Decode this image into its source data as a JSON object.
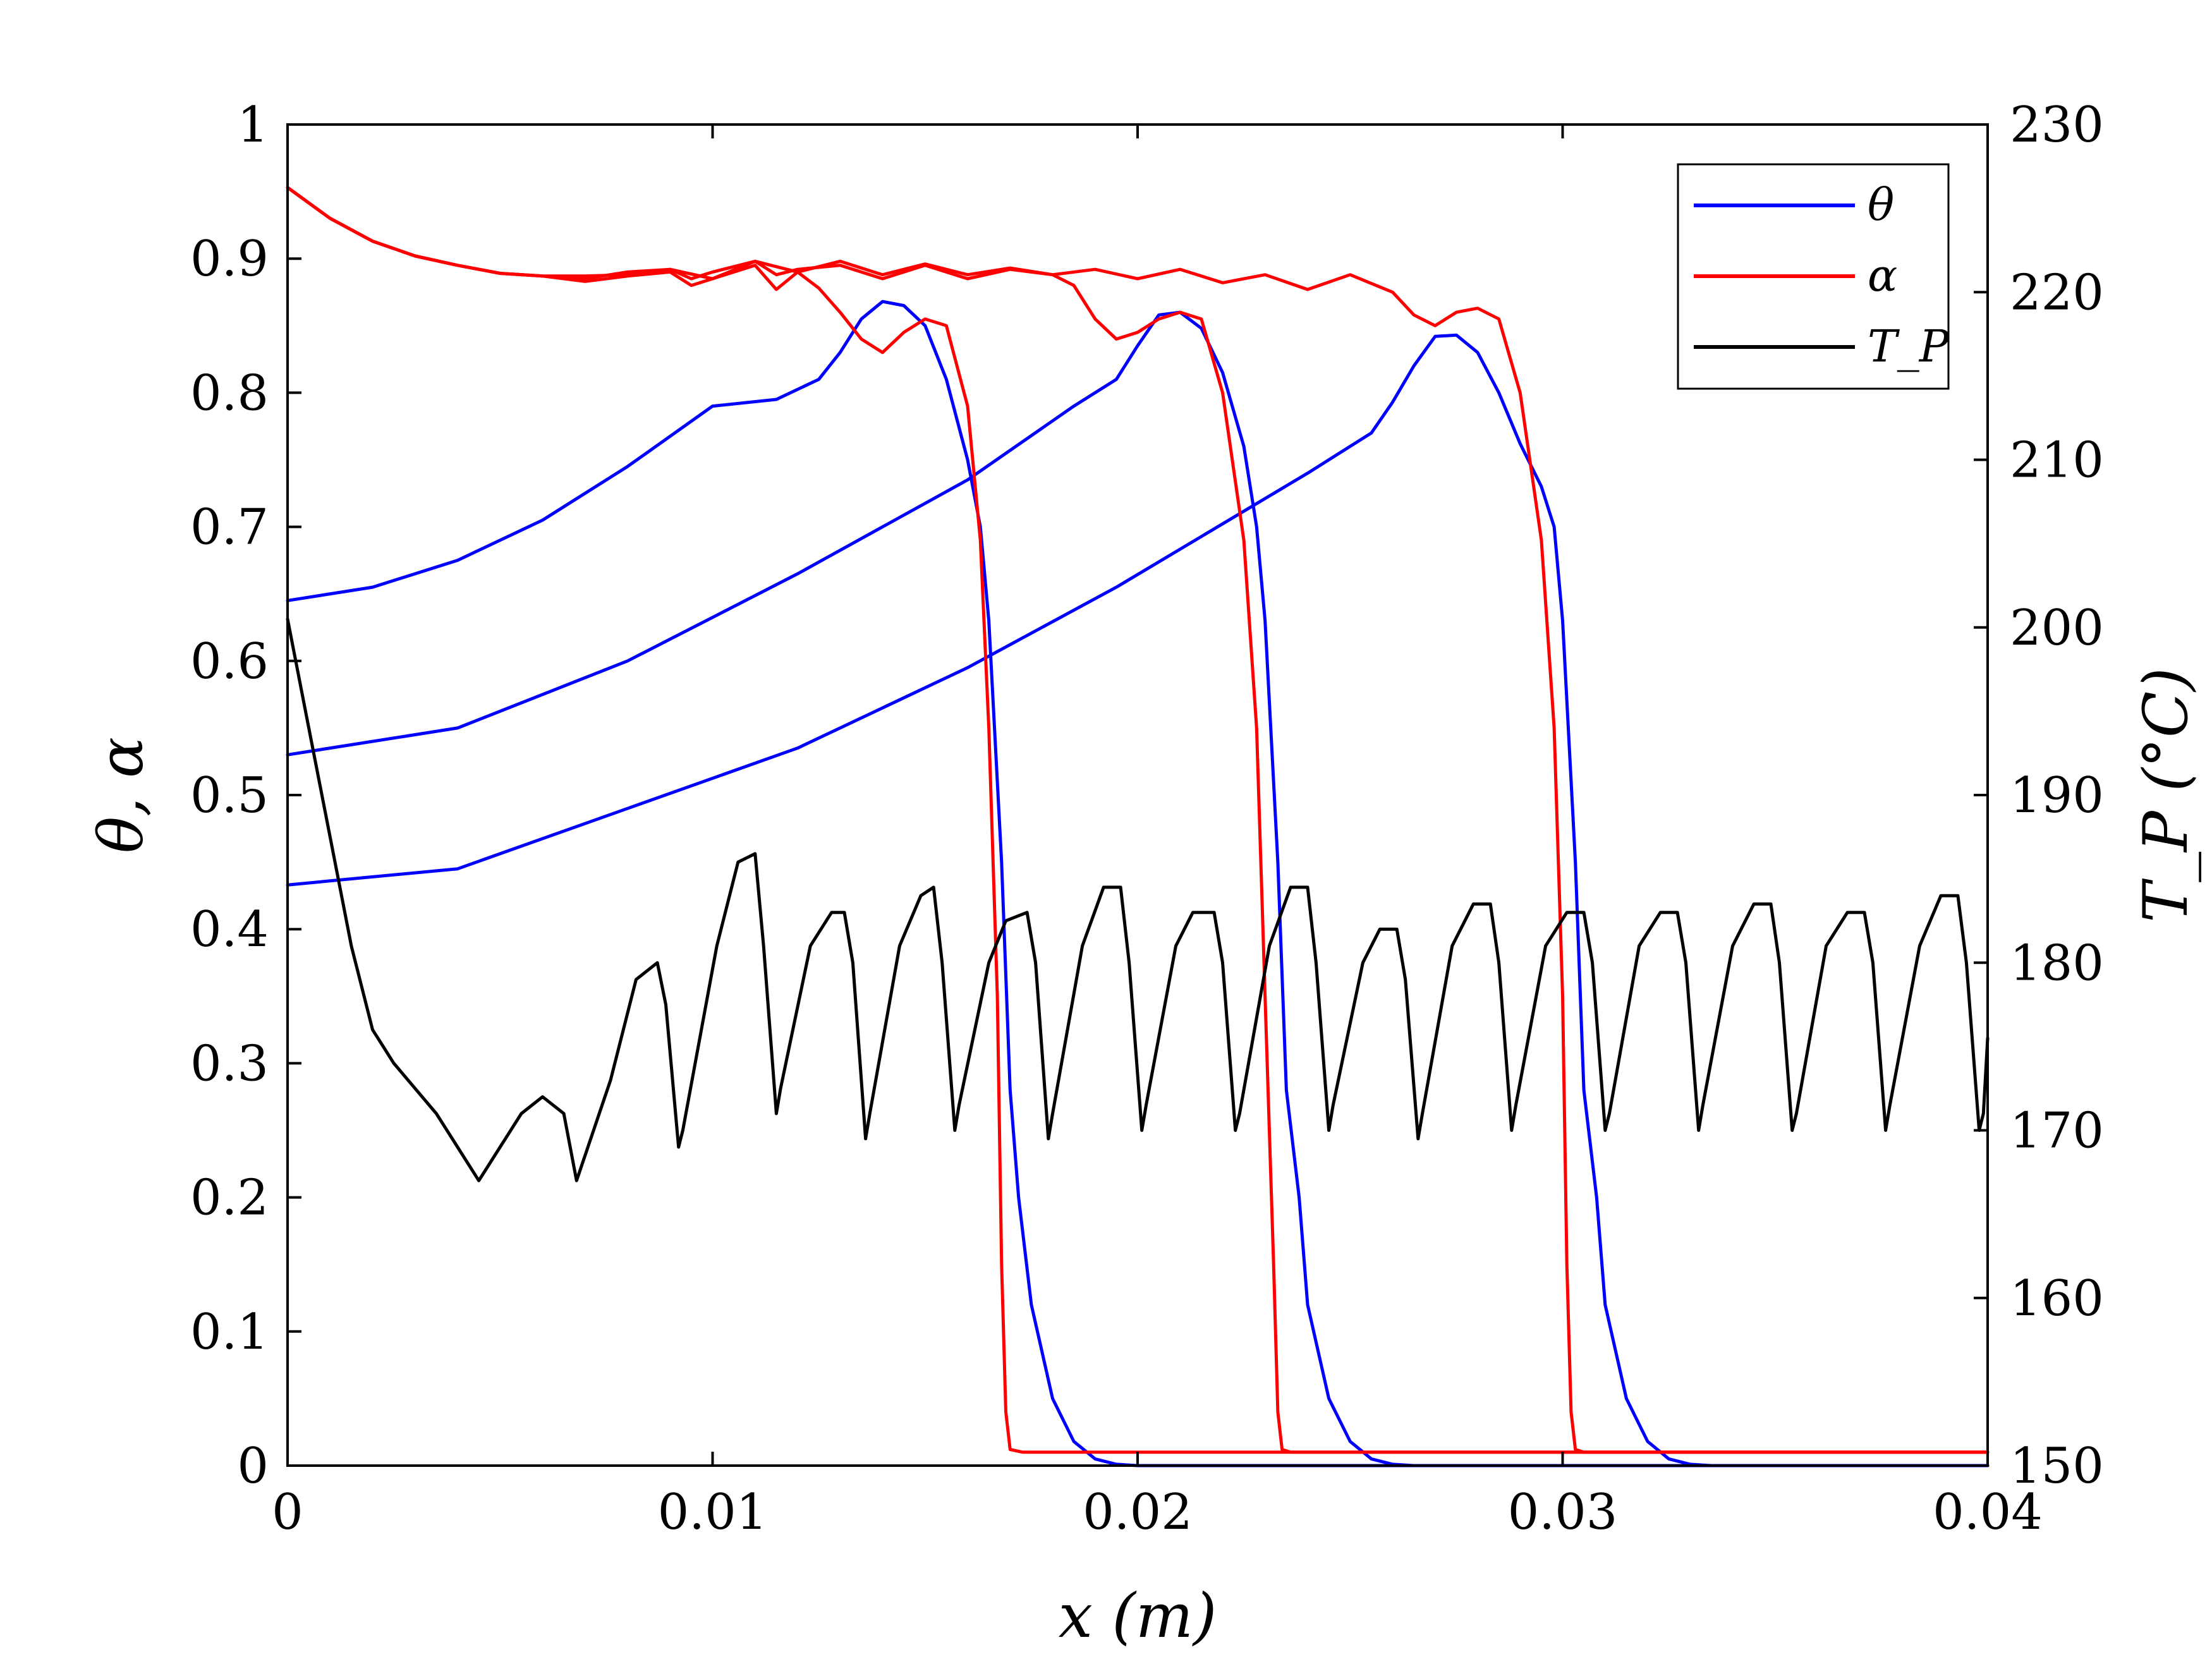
{
  "chart_data": {
    "type": "line",
    "x_axis": {
      "label": "x (m)",
      "range": [
        0,
        0.04
      ],
      "ticks": [
        0,
        0.01,
        0.02,
        0.03,
        0.04
      ],
      "tick_labels": [
        "0",
        "0.01",
        "0.02",
        "0.03",
        "0.04"
      ]
    },
    "y_axis_left": {
      "label": "θ, α",
      "range": [
        0,
        1
      ],
      "ticks": [
        0,
        0.1,
        0.2,
        0.3,
        0.4,
        0.5,
        0.6,
        0.7,
        0.8,
        0.9,
        1
      ],
      "tick_labels": [
        "0",
        "0.1",
        "0.2",
        "0.3",
        "0.4",
        "0.5",
        "0.6",
        "0.7",
        "0.8",
        "0.9",
        "1"
      ]
    },
    "y_axis_right": {
      "label": "T_P (°C)",
      "range": [
        150,
        230
      ],
      "ticks": [
        150,
        160,
        170,
        180,
        190,
        200,
        210,
        220,
        230
      ],
      "tick_labels": [
        "150",
        "160",
        "170",
        "180",
        "190",
        "200",
        "210",
        "220",
        "230"
      ]
    },
    "legend": {
      "placement": "top-right",
      "entries": [
        {
          "label": "θ",
          "color": "#0000ff"
        },
        {
          "label": "α",
          "color": "#ff0000"
        },
        {
          "label": "T_P",
          "color": "#000000"
        }
      ]
    },
    "series": [
      {
        "name": "θ",
        "axis": "left",
        "color": "#0000ff",
        "lines": [
          {
            "x": [
              0,
              0.002,
              0.004,
              0.006,
              0.008,
              0.01,
              0.0115,
              0.0125,
              0.013,
              0.0135,
              0.014,
              0.0145,
              0.015,
              0.0155,
              0.016,
              0.0163,
              0.0165,
              0.0168,
              0.017,
              0.0172,
              0.0175,
              0.018,
              0.0185,
              0.019,
              0.0195,
              0.02,
              0.021,
              0.04
            ],
            "y": [
              0.645,
              0.655,
              0.675,
              0.705,
              0.745,
              0.79,
              0.795,
              0.81,
              0.83,
              0.855,
              0.868,
              0.865,
              0.85,
              0.81,
              0.75,
              0.7,
              0.63,
              0.45,
              0.28,
              0.2,
              0.12,
              0.05,
              0.018,
              0.005,
              0.001,
              0,
              0,
              0
            ]
          },
          {
            "x": [
              0,
              0.004,
              0.008,
              0.012,
              0.016,
              0.0185,
              0.0195,
              0.02,
              0.0205,
              0.021,
              0.0215,
              0.022,
              0.0225,
              0.0228,
              0.023,
              0.0233,
              0.0235,
              0.0238,
              0.024,
              0.0245,
              0.025,
              0.0255,
              0.026,
              0.0265,
              0.027,
              0.04
            ],
            "y": [
              0.53,
              0.55,
              0.6,
              0.665,
              0.735,
              0.79,
              0.81,
              0.835,
              0.858,
              0.86,
              0.848,
              0.815,
              0.76,
              0.7,
              0.63,
              0.45,
              0.28,
              0.2,
              0.12,
              0.05,
              0.018,
              0.005,
              0.001,
              0,
              0,
              0
            ]
          },
          {
            "x": [
              0,
              0.004,
              0.008,
              0.012,
              0.016,
              0.0195,
              0.024,
              0.0255,
              0.026,
              0.0265,
              0.027,
              0.0275,
              0.028,
              0.0285,
              0.029,
              0.0295,
              0.0298,
              0.03,
              0.0303,
              0.0305,
              0.0308,
              0.031,
              0.0315,
              0.032,
              0.0325,
              0.033,
              0.0335,
              0.04
            ],
            "y": [
              0.433,
              0.445,
              0.49,
              0.535,
              0.595,
              0.655,
              0.74,
              0.77,
              0.793,
              0.82,
              0.842,
              0.843,
              0.83,
              0.8,
              0.762,
              0.73,
              0.7,
              0.63,
              0.45,
              0.28,
              0.2,
              0.12,
              0.05,
              0.018,
              0.005,
              0.001,
              0,
              0
            ]
          }
        ]
      },
      {
        "name": "α",
        "axis": "left",
        "color": "#ff0000",
        "lines": [
          {
            "x": [
              0,
              0.001,
              0.002,
              0.003,
              0.004,
              0.005,
              0.006,
              0.007,
              0.008,
              0.009,
              0.0095,
              0.01,
              0.011,
              0.0115,
              0.012,
              0.0125,
              0.013,
              0.0135,
              0.014,
              0.0145,
              0.015,
              0.0155,
              0.016,
              0.0163,
              0.0165,
              0.0167,
              0.0168,
              0.0169,
              0.017,
              0.0173,
              0.04
            ],
            "y": [
              0.953,
              0.93,
              0.913,
              0.902,
              0.895,
              0.889,
              0.887,
              0.883,
              0.887,
              0.89,
              0.88,
              0.885,
              0.895,
              0.877,
              0.89,
              0.878,
              0.86,
              0.84,
              0.83,
              0.845,
              0.855,
              0.85,
              0.79,
              0.69,
              0.55,
              0.35,
              0.15,
              0.04,
              0.012,
              0.01,
              0.01
            ]
          },
          {
            "x": [
              0,
              0.001,
              0.002,
              0.003,
              0.004,
              0.005,
              0.006,
              0.007,
              0.008,
              0.009,
              0.0095,
              0.01,
              0.011,
              0.0115,
              0.012,
              0.013,
              0.014,
              0.015,
              0.016,
              0.017,
              0.018,
              0.0185,
              0.019,
              0.0195,
              0.02,
              0.0205,
              0.021,
              0.0215,
              0.022,
              0.0225,
              0.0228,
              0.023,
              0.0232,
              0.0233,
              0.0234,
              0.0236,
              0.04
            ],
            "y": [
              0.953,
              0.93,
              0.913,
              0.902,
              0.895,
              0.889,
              0.887,
              0.885,
              0.89,
              0.892,
              0.885,
              0.89,
              0.898,
              0.888,
              0.892,
              0.895,
              0.885,
              0.895,
              0.885,
              0.892,
              0.888,
              0.88,
              0.855,
              0.84,
              0.845,
              0.855,
              0.86,
              0.855,
              0.8,
              0.69,
              0.55,
              0.35,
              0.15,
              0.04,
              0.012,
              0.01,
              0.01
            ]
          },
          {
            "x": [
              0,
              0.001,
              0.002,
              0.003,
              0.004,
              0.005,
              0.006,
              0.007,
              0.008,
              0.009,
              0.01,
              0.011,
              0.012,
              0.013,
              0.014,
              0.015,
              0.016,
              0.017,
              0.018,
              0.019,
              0.02,
              0.021,
              0.022,
              0.023,
              0.024,
              0.025,
              0.026,
              0.0265,
              0.027,
              0.0275,
              0.028,
              0.0285,
              0.029,
              0.0295,
              0.0298,
              0.03,
              0.0301,
              0.0302,
              0.0303,
              0.0305,
              0.04
            ],
            "y": [
              0.953,
              0.93,
              0.913,
              0.902,
              0.895,
              0.889,
              0.887,
              0.887,
              0.888,
              0.892,
              0.885,
              0.898,
              0.89,
              0.898,
              0.888,
              0.896,
              0.888,
              0.893,
              0.888,
              0.892,
              0.885,
              0.892,
              0.882,
              0.888,
              0.877,
              0.888,
              0.875,
              0.858,
              0.85,
              0.86,
              0.863,
              0.855,
              0.8,
              0.69,
              0.55,
              0.35,
              0.15,
              0.04,
              0.012,
              0.01,
              0.01
            ]
          }
        ]
      },
      {
        "name": "T_P",
        "axis": "right",
        "color": "#000000",
        "lines": [
          {
            "x": [
              0,
              0.0005,
              0.001,
              0.0015,
              0.002,
              0.0025,
              0.003,
              0.0035,
              0.004,
              0.0045,
              0.005,
              0.0055,
              0.006,
              0.0065,
              0.0068,
              0.0076,
              0.0082,
              0.0087,
              0.0089,
              0.0092,
              0.0093,
              0.0101,
              0.0106,
              0.011,
              0.0112,
              0.0115,
              0.0116,
              0.0123,
              0.0128,
              0.0131,
              0.0133,
              0.0136,
              0.0137,
              0.0144,
              0.0149,
              0.0152,
              0.0154,
              0.0157,
              0.0158,
              0.0165,
              0.0169,
              0.0174,
              0.0176,
              0.0179,
              0.018,
              0.0187,
              0.0192,
              0.0196,
              0.0198,
              0.0201,
              0.0202,
              0.0209,
              0.0213,
              0.0218,
              0.022,
              0.0223,
              0.0224,
              0.0231,
              0.0236,
              0.024,
              0.0242,
              0.0245,
              0.0246,
              0.0253,
              0.0257,
              0.0261,
              0.0263,
              0.0266,
              0.0267,
              0.0274,
              0.0279,
              0.0283,
              0.0285,
              0.0288,
              0.0289,
              0.0296,
              0.0301,
              0.0305,
              0.0307,
              0.031,
              0.0311,
              0.0318,
              0.0323,
              0.0327,
              0.0329,
              0.0332,
              0.0333,
              0.034,
              0.0345,
              0.0349,
              0.0351,
              0.0354,
              0.0355,
              0.0362,
              0.0367,
              0.0371,
              0.0373,
              0.0376,
              0.0377,
              0.0384,
              0.0389,
              0.0393,
              0.0395,
              0.0398,
              0.0399,
              0.04
            ],
            "y": [
              200.5,
              194,
              187.5,
              181,
              176,
              174,
              172.5,
              171,
              169,
              167,
              169,
              171,
              172,
              171,
              167,
              173,
              179,
              180,
              177.5,
              169,
              170,
              181,
              186,
              186.5,
              181,
              171,
              172.5,
              181,
              183,
              183,
              180,
              169.5,
              171,
              181,
              184,
              184.5,
              180,
              170,
              171.5,
              180,
              182.5,
              183,
              180,
              169.5,
              171,
              181,
              184.5,
              184.5,
              180,
              170,
              171.5,
              181,
              183,
              183,
              180,
              170,
              171,
              181,
              184.5,
              184.5,
              180,
              170,
              171.5,
              180,
              182,
              182,
              179,
              169.5,
              171,
              181,
              183.5,
              183.5,
              180,
              170,
              171.5,
              181,
              183,
              183,
              180,
              170,
              171,
              181,
              183,
              183,
              180,
              170,
              171.5,
              181,
              183.5,
              183.5,
              180,
              170,
              171,
              181,
              183,
              183,
              180,
              170,
              171.5,
              181,
              184,
              184,
              180,
              170,
              171,
              175.5
            ]
          }
        ]
      }
    ]
  }
}
